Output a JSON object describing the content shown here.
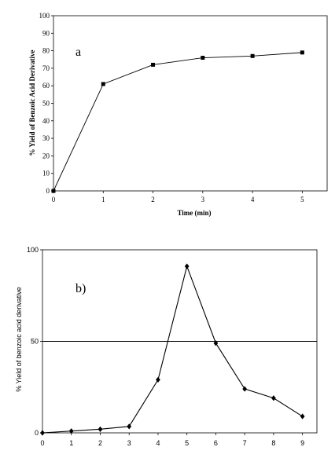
{
  "chart_data": [
    {
      "type": "line",
      "panel_label": "a",
      "x": [
        0,
        1,
        2,
        3,
        4,
        5
      ],
      "series": [
        {
          "values": [
            0,
            61,
            72,
            76,
            77,
            79
          ]
        }
      ],
      "marker": "square",
      "xlabel": "Time (min)",
      "ylabel": "% Yield of Benzoic Acid Derivative",
      "xlim": [
        0,
        5.5
      ],
      "ylim": [
        0,
        100
      ],
      "xticks": [
        "0",
        "1",
        "2",
        "3",
        "4",
        "5"
      ],
      "yticks": [
        "0",
        "10",
        "20",
        "30",
        "40",
        "50",
        "60",
        "70",
        "80",
        "90",
        "100"
      ],
      "grid": false,
      "frame": "box"
    },
    {
      "type": "line",
      "panel_label": "b)",
      "x": [
        0,
        1,
        2,
        3,
        4,
        5,
        6,
        7,
        8,
        9
      ],
      "series": [
        {
          "values": [
            0,
            1,
            2,
            3.5,
            29,
            91,
            49,
            24,
            19,
            9
          ]
        }
      ],
      "marker": "diamond",
      "xlabel": "",
      "ylabel": "% Yield of benzoic acid derivative",
      "xlim": [
        0,
        9.5
      ],
      "ylim": [
        0,
        100
      ],
      "xticks": [
        "0",
        "1",
        "2",
        "3",
        "4",
        "5",
        "6",
        "7",
        "8",
        "9"
      ],
      "yticks": [
        "0",
        "50",
        "100"
      ],
      "reference_line_y": 50,
      "grid": false,
      "frame": "box"
    }
  ]
}
